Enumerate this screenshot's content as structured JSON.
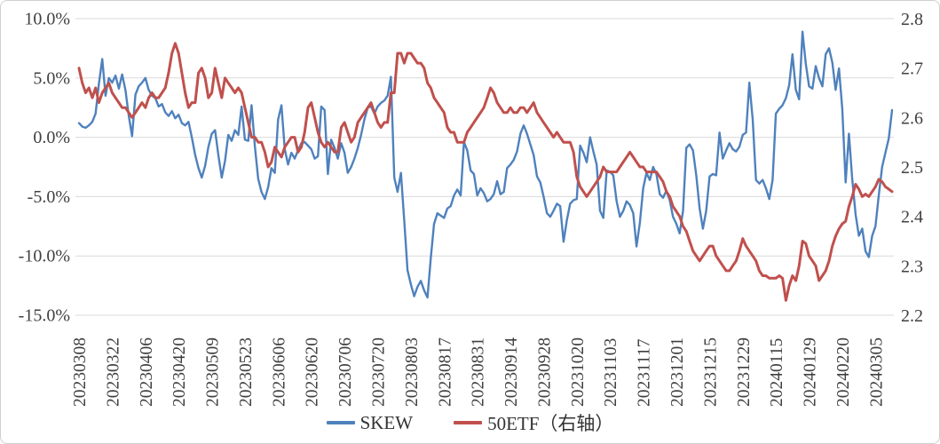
{
  "chart_data": {
    "type": "line",
    "title": "",
    "x_labels": [
      "20230308",
      "20230322",
      "20230406",
      "20230420",
      "20230509",
      "20230523",
      "20230606",
      "20230620",
      "20230706",
      "20230720",
      "20230803",
      "20230817",
      "20230831",
      "20230914",
      "20230928",
      "20231020",
      "20231103",
      "20231117",
      "20231201",
      "20231215",
      "20231229",
      "20240115",
      "20240129",
      "20240220",
      "20240305"
    ],
    "label_step": 10,
    "grid": "horizontal-only",
    "legend_position": "bottom-center",
    "colors": {
      "skew": "#4F81BD",
      "etf": "#C0504D",
      "gridline": "#D9D9D9",
      "tick_text": "#404040"
    },
    "left_axis": {
      "ticks": [
        "10.0%",
        "5.0%",
        "0.0%",
        "-5.0%",
        "-10.0%",
        "-15.0%"
      ],
      "tick_values": [
        10,
        5,
        0,
        -5,
        -10,
        -15
      ],
      "min": -15,
      "max": 10,
      "format": "percent"
    },
    "right_axis": {
      "ticks": [
        "2.8",
        "2.7",
        "2.6",
        "2.5",
        "2.4",
        "2.3",
        "2.2"
      ],
      "tick_values": [
        2.8,
        2.7,
        2.6,
        2.5,
        2.4,
        2.3,
        2.2
      ],
      "min": 2.2,
      "max": 2.8
    },
    "series": [
      {
        "name": "SKEW",
        "axis": "left",
        "color": "#4F81BD",
        "values": [
          1.2,
          0.9,
          0.8,
          1.0,
          1.3,
          2.0,
          4.5,
          6.6,
          3.5,
          5.0,
          4.6,
          5.2,
          4.1,
          5.3,
          4.0,
          1.8,
          0.1,
          3.6,
          4.3,
          4.6,
          5.0,
          4.0,
          3.5,
          3.3,
          2.6,
          2.8,
          2.1,
          1.8,
          2.2,
          1.6,
          1.9,
          1.2,
          1.0,
          1.3,
          0.0,
          -1.5,
          -2.6,
          -3.4,
          -2.4,
          -0.8,
          0.3,
          0.6,
          -1.5,
          -3.4,
          -2.0,
          0.2,
          -0.3,
          0.6,
          0.2,
          2.6,
          -0.2,
          -0.3,
          2.7,
          -0.8,
          -3.5,
          -4.6,
          -5.2,
          -4.2,
          -2.6,
          -3.0,
          1.5,
          2.7,
          -1.0,
          -2.3,
          -1.3,
          -1.8,
          -1.1,
          -0.5,
          -0.4,
          -0.7,
          -1.0,
          -1.8,
          -1.6,
          2.6,
          2.3,
          -3.1,
          -0.2,
          -0.9,
          -1.8,
          -0.5,
          -1.3,
          -3.0,
          -2.5,
          -1.8,
          -0.9,
          0.2,
          1.5,
          2.5,
          2.6,
          2.0,
          2.6,
          2.9,
          3.1,
          3.5,
          5.1,
          -3.4,
          -4.6,
          -3.0,
          -7.0,
          -11.2,
          -12.4,
          -13.4,
          -12.6,
          -12.1,
          -12.9,
          -13.5,
          -10.2,
          -7.3,
          -6.4,
          -6.6,
          -6.8,
          -6.0,
          -5.8,
          -4.9,
          -4.4,
          -4.9,
          -0.4,
          -1.1,
          -2.8,
          -3.1,
          -4.9,
          -4.3,
          -4.7,
          -5.4,
          -5.2,
          -4.8,
          -3.7,
          -4.8,
          -4.6,
          -2.6,
          -2.3,
          -1.9,
          -1.2,
          0.3,
          1.0,
          0.3,
          -0.6,
          -1.5,
          -3.3,
          -3.8,
          -5.0,
          -6.4,
          -6.7,
          -6.2,
          -5.6,
          -5.8,
          -8.8,
          -7.0,
          -5.6,
          -5.3,
          -5.2,
          -0.7,
          -1.3,
          -2.1,
          0.0,
          -1.2,
          -2.3,
          -6.2,
          -6.8,
          -2.8,
          -2.9,
          -3.2,
          -5.4,
          -6.7,
          -6.2,
          -5.4,
          -5.7,
          -6.4,
          -9.2,
          -7.2,
          -4.3,
          -3.0,
          -3.6,
          -2.5,
          -3.1,
          -4.8,
          -5.1,
          -4.5,
          -5.3,
          -6.7,
          -7.3,
          -8.1,
          -6.2,
          -0.9,
          -0.6,
          -1.1,
          -3.2,
          -6.0,
          -7.7,
          -6.2,
          -3.3,
          -3.1,
          -3.2,
          0.4,
          -1.8,
          -1.1,
          -0.5,
          -1.0,
          -1.2,
          -0.8,
          0.2,
          0.4,
          4.6,
          1.5,
          -3.6,
          -3.9,
          -3.6,
          -4.3,
          -5.2,
          -3.6,
          2.0,
          2.4,
          2.7,
          3.3,
          4.4,
          7.0,
          4.0,
          3.2,
          8.9,
          6.2,
          4.3,
          4.1,
          6.0,
          5.0,
          4.3,
          7.0,
          7.5,
          6.3,
          4.0,
          5.8,
          2.4,
          -3.8,
          0.3,
          -3.5,
          -6.5,
          -8.3,
          -7.7,
          -9.6,
          -10.1,
          -8.3,
          -7.5,
          -4.9,
          -2.5,
          -1.3,
          -0.1,
          2.3
        ]
      },
      {
        "name": "50ETF（右轴）",
        "axis": "right",
        "color": "#C0504D",
        "values": [
          2.7,
          2.67,
          2.65,
          2.66,
          2.64,
          2.66,
          2.63,
          2.65,
          2.66,
          2.67,
          2.65,
          2.64,
          2.63,
          2.62,
          2.62,
          2.61,
          2.6,
          2.61,
          2.62,
          2.63,
          2.62,
          2.64,
          2.65,
          2.64,
          2.64,
          2.65,
          2.66,
          2.69,
          2.73,
          2.75,
          2.73,
          2.69,
          2.65,
          2.62,
          2.63,
          2.63,
          2.69,
          2.7,
          2.68,
          2.64,
          2.65,
          2.7,
          2.67,
          2.64,
          2.68,
          2.67,
          2.66,
          2.65,
          2.66,
          2.65,
          2.62,
          2.59,
          2.56,
          2.56,
          2.55,
          2.55,
          2.53,
          2.5,
          2.51,
          2.54,
          2.53,
          2.52,
          2.54,
          2.55,
          2.56,
          2.56,
          2.53,
          2.54,
          2.57,
          2.62,
          2.63,
          2.6,
          2.57,
          2.55,
          2.54,
          2.55,
          2.54,
          2.53,
          2.53,
          2.58,
          2.59,
          2.57,
          2.55,
          2.56,
          2.59,
          2.6,
          2.61,
          2.62,
          2.63,
          2.61,
          2.59,
          2.58,
          2.59,
          2.59,
          2.65,
          2.65,
          2.73,
          2.73,
          2.71,
          2.73,
          2.73,
          2.72,
          2.71,
          2.71,
          2.7,
          2.67,
          2.66,
          2.64,
          2.63,
          2.62,
          2.61,
          2.58,
          2.57,
          2.57,
          2.55,
          2.55,
          2.55,
          2.57,
          2.58,
          2.59,
          2.6,
          2.61,
          2.62,
          2.64,
          2.66,
          2.65,
          2.63,
          2.62,
          2.61,
          2.61,
          2.62,
          2.61,
          2.61,
          2.62,
          2.62,
          2.61,
          2.62,
          2.63,
          2.61,
          2.6,
          2.59,
          2.58,
          2.57,
          2.56,
          2.57,
          2.56,
          2.55,
          2.55,
          2.55,
          2.53,
          2.48,
          2.46,
          2.45,
          2.44,
          2.45,
          2.46,
          2.47,
          2.48,
          2.5,
          2.49,
          2.49,
          2.49,
          2.49,
          2.5,
          2.51,
          2.52,
          2.53,
          2.52,
          2.51,
          2.5,
          2.5,
          2.49,
          2.49,
          2.49,
          2.49,
          2.48,
          2.47,
          2.45,
          2.44,
          2.42,
          2.41,
          2.4,
          2.38,
          2.37,
          2.35,
          2.33,
          2.32,
          2.31,
          2.32,
          2.33,
          2.34,
          2.34,
          2.32,
          2.31,
          2.3,
          2.29,
          2.29,
          2.3,
          2.31,
          2.33,
          2.355,
          2.34,
          2.33,
          2.32,
          2.31,
          2.29,
          2.28,
          2.28,
          2.275,
          2.275,
          2.275,
          2.28,
          2.275,
          2.23,
          2.26,
          2.28,
          2.27,
          2.3,
          2.35,
          2.345,
          2.32,
          2.31,
          2.3,
          2.27,
          2.28,
          2.29,
          2.31,
          2.34,
          2.36,
          2.375,
          2.385,
          2.39,
          2.42,
          2.44,
          2.465,
          2.455,
          2.44,
          2.445,
          2.44,
          2.45,
          2.46,
          2.475,
          2.47,
          2.46,
          2.455,
          2.45
        ]
      }
    ]
  },
  "legend": {
    "skew_label": "SKEW",
    "etf_label": "50ETF（右轴）"
  }
}
